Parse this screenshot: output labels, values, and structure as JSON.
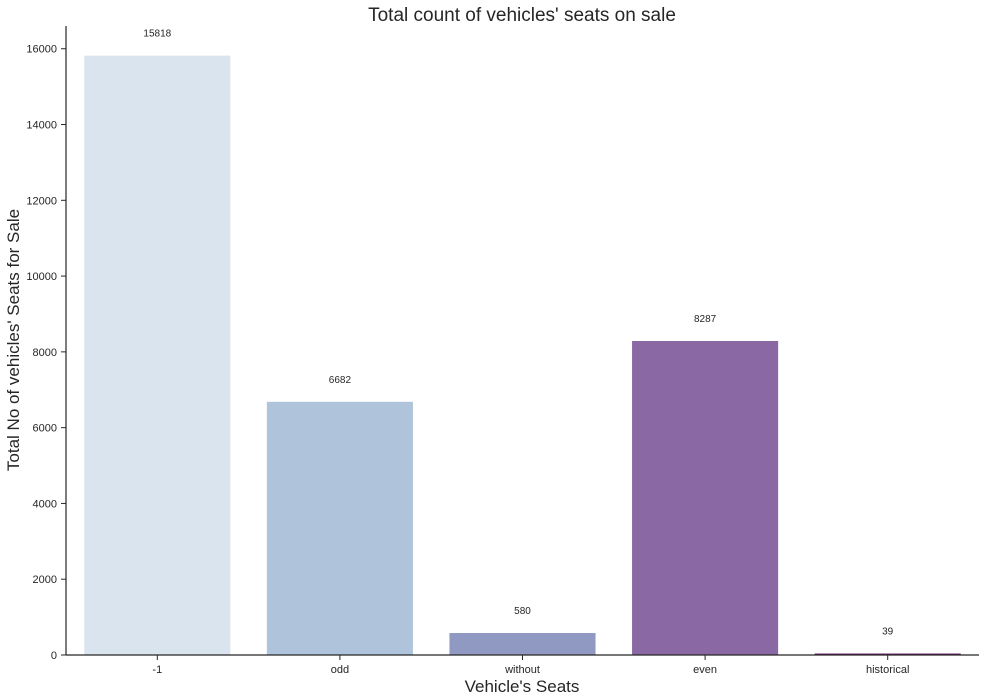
{
  "chart_data": {
    "type": "bar",
    "title": "Total count of vehicles' seats on sale",
    "xlabel": "Vehicle's Seats",
    "ylabel": "Total No of vehicles' Seats for Sale",
    "categories": [
      "-1",
      "odd",
      "without",
      "even",
      "historical"
    ],
    "values": [
      15818,
      6682,
      580,
      8287,
      39
    ],
    "data_labels": [
      "15818",
      "6682",
      "580",
      "8287",
      "39"
    ],
    "colors": [
      "#d9e4ee",
      "#afc4da",
      "#9099c2",
      "#8968a3",
      "#6d1b6f"
    ],
    "ylim": [
      0,
      16600
    ],
    "yticks": [
      0,
      2000,
      4000,
      6000,
      8000,
      10000,
      12000,
      14000,
      16000
    ],
    "grid": false,
    "legend": "none"
  }
}
